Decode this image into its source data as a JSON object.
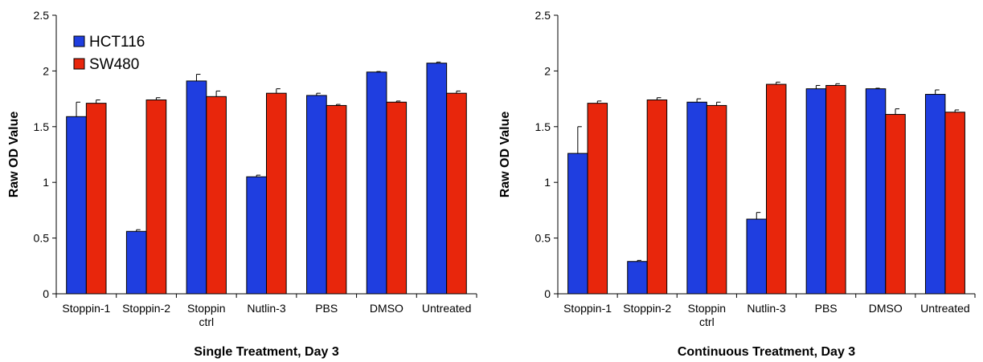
{
  "chart_data": [
    {
      "type": "bar",
      "title": "",
      "xlabel": "Single Treatment, Day 3",
      "ylabel": "Raw OD Value",
      "ylim": [
        0,
        2.5
      ],
      "yticks": [
        "0",
        "0.5",
        "1",
        "1.5",
        "2",
        "2.5"
      ],
      "categories": [
        [
          "Stoppin-1"
        ],
        [
          "Stoppin-2"
        ],
        [
          "Stoppin",
          "ctrl"
        ],
        [
          "Nutlin-3"
        ],
        [
          "PBS"
        ],
        [
          "DMSO"
        ],
        [
          "Untreated"
        ]
      ],
      "legend": "top-left",
      "series": [
        {
          "name": "HCT116",
          "color": "#1f3ee0",
          "values": [
            1.59,
            0.56,
            1.91,
            1.05,
            1.78,
            1.99,
            2.07
          ],
          "errors": [
            0.13,
            0.015,
            0.06,
            0.015,
            0.02,
            0.005,
            0.01
          ]
        },
        {
          "name": "SW480",
          "color": "#e8260c",
          "values": [
            1.71,
            1.74,
            1.77,
            1.8,
            1.69,
            1.72,
            1.8
          ],
          "errors": [
            0.03,
            0.02,
            0.05,
            0.04,
            0.01,
            0.01,
            0.02
          ]
        }
      ]
    },
    {
      "type": "bar",
      "title": "",
      "xlabel": "Continuous Treatment, Day 3",
      "ylabel": "Raw OD Value",
      "ylim": [
        0,
        2.5
      ],
      "yticks": [
        "0",
        "0.5",
        "1",
        "1.5",
        "2",
        "2.5"
      ],
      "categories": [
        [
          "Stoppin-1"
        ],
        [
          "Stoppin-2"
        ],
        [
          "Stoppin",
          "ctrl"
        ],
        [
          "Nutlin-3"
        ],
        [
          "PBS"
        ],
        [
          "DMSO"
        ],
        [
          "Untreated"
        ]
      ],
      "series": [
        {
          "name": "HCT116",
          "color": "#1f3ee0",
          "values": [
            1.26,
            0.29,
            1.72,
            0.67,
            1.84,
            1.84,
            1.79
          ],
          "errors": [
            0.24,
            0.01,
            0.03,
            0.06,
            0.03,
            0.005,
            0.04
          ]
        },
        {
          "name": "SW480",
          "color": "#e8260c",
          "values": [
            1.71,
            1.74,
            1.69,
            1.88,
            1.87,
            1.61,
            1.63
          ],
          "errors": [
            0.02,
            0.02,
            0.03,
            0.02,
            0.015,
            0.05,
            0.02
          ]
        }
      ]
    }
  ]
}
